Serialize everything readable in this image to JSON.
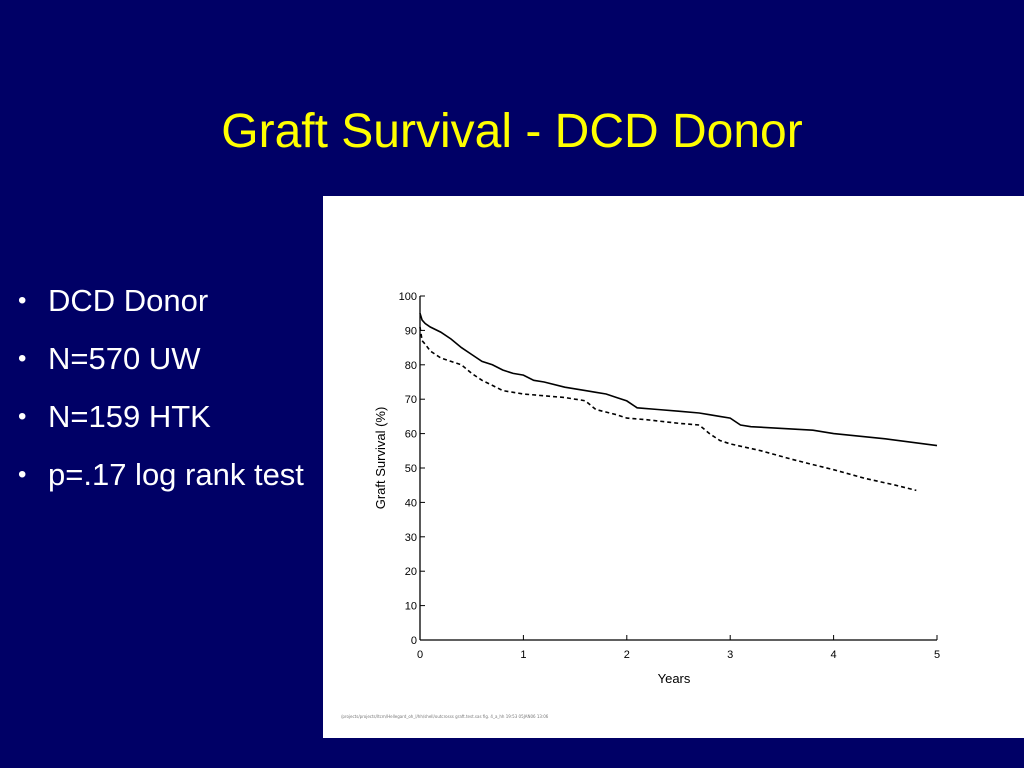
{
  "slide": {
    "title": "Graft Survival - DCD Donor",
    "background_color": "#000066",
    "title_color": "#FFFF00",
    "text_color": "#FFFFFF"
  },
  "bullets": [
    {
      "text": "DCD Donor"
    },
    {
      "text": "N=570 UW"
    },
    {
      "text": "N=159 HTK"
    },
    {
      "text": "p=.17  log rank test"
    }
  ],
  "chart_data": {
    "type": "line",
    "xlabel": "Years",
    "ylabel": "Graft Survival  (%)",
    "xlim": [
      0,
      5
    ],
    "ylim": [
      0,
      100
    ],
    "xticks": [
      0,
      1,
      2,
      3,
      4,
      5
    ],
    "yticks": [
      0,
      10,
      20,
      30,
      40,
      50,
      60,
      70,
      80,
      90,
      100
    ],
    "grid": false,
    "legend": "none",
    "series": [
      {
        "style": "solid",
        "x": [
          0,
          0.02,
          0.05,
          0.1,
          0.2,
          0.3,
          0.4,
          0.5,
          0.6,
          0.7,
          0.8,
          0.9,
          1.0,
          1.1,
          1.2,
          1.4,
          1.6,
          1.7,
          1.8,
          1.9,
          2.0,
          2.1,
          2.3,
          2.5,
          2.7,
          2.8,
          2.9,
          3.0,
          3.1,
          3.2,
          3.5,
          3.8,
          4.0,
          4.5,
          5.0
        ],
        "y": [
          95,
          93,
          92,
          91,
          89.5,
          87.5,
          85,
          83,
          81,
          80,
          78.5,
          77.5,
          77,
          75.5,
          75,
          73.5,
          72.5,
          72,
          71.5,
          70.5,
          69.5,
          67.5,
          67,
          66.5,
          66,
          65.5,
          65,
          64.5,
          62.5,
          62,
          61.5,
          61,
          60,
          58.5,
          56.5
        ]
      },
      {
        "style": "dashed",
        "x": [
          0,
          0.02,
          0.05,
          0.1,
          0.2,
          0.3,
          0.4,
          0.5,
          0.6,
          0.7,
          0.8,
          0.9,
          1.0,
          1.2,
          1.4,
          1.5,
          1.55,
          1.6,
          1.7,
          1.9,
          2.0,
          2.2,
          2.5,
          2.7,
          2.8,
          2.9,
          3.0,
          3.3,
          3.6,
          3.8,
          4.0,
          4.3,
          4.6,
          4.8
        ],
        "y": [
          91,
          87,
          86,
          84,
          82,
          81,
          80,
          77.5,
          75.5,
          74,
          72.5,
          72,
          71.5,
          71,
          70.5,
          70,
          69.8,
          69.5,
          67,
          65.5,
          64.5,
          64,
          63,
          62.5,
          60,
          58,
          57,
          55,
          52.5,
          51,
          49.5,
          47,
          45,
          43.5
        ]
      }
    ],
    "footnote": "/projects/projects/ltcm/Hellegard_oh_l/hh/shell/outcrosss graft.test.sas  fig. 4_a_hh  19:53  05JAN06  13:06"
  }
}
